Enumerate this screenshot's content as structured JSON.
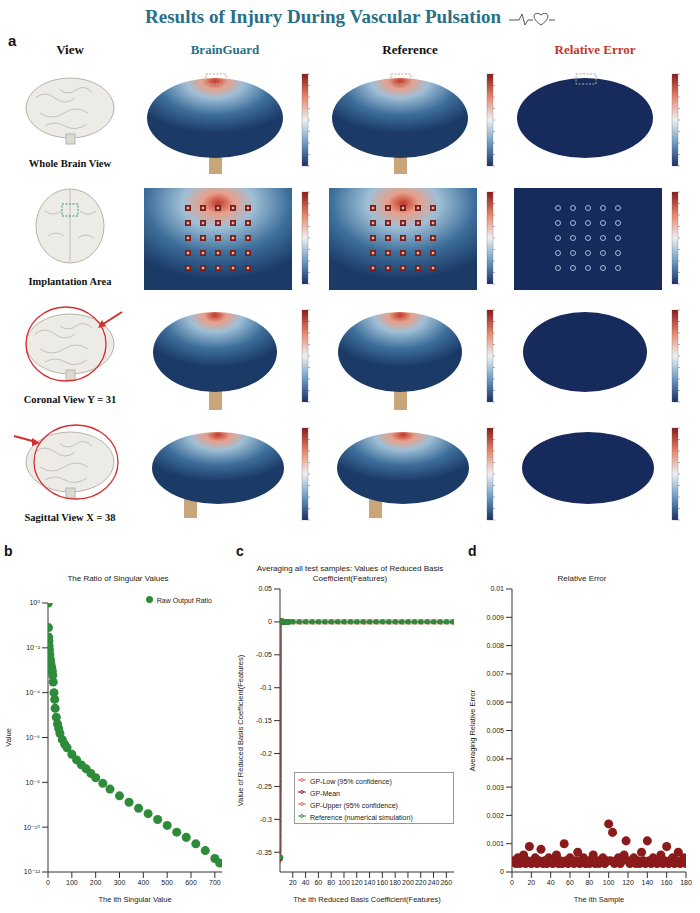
{
  "title": "Results of Injury During Vascular Pulsation",
  "panel_a": {
    "label": "a",
    "columns": [
      "View",
      "BrainGuard",
      "Reference",
      "Relative Error"
    ],
    "rows": [
      "Whole Brain View",
      "Implantation Area",
      "Coronal View Y = 31",
      "Sagittal View X = 38"
    ]
  },
  "chart_data": [
    {
      "panel": "b",
      "type": "scatter",
      "title": "The Ratio of Singular Values",
      "x_label": "The ith Singular Value",
      "y_label": "Value",
      "log": "y",
      "grid": false,
      "legend": "top right",
      "xlim": [
        0,
        730
      ],
      "xticks": [
        0,
        100,
        200,
        300,
        400,
        500,
        600,
        700
      ],
      "ylim": [
        1e-12,
        1
      ],
      "yticks": [
        {
          "value": 1,
          "label": "10⁰"
        },
        {
          "value": 0.01,
          "label": "10⁻²"
        },
        {
          "value": 0.0001,
          "label": "10⁻⁴"
        },
        {
          "value": 1e-06,
          "label": "10⁻⁶"
        },
        {
          "value": 1e-08,
          "label": "10⁻⁸"
        },
        {
          "value": 1e-10,
          "label": "10⁻¹⁰"
        },
        {
          "value": 1e-12,
          "label": "10⁻¹²"
        }
      ],
      "x": [
        1,
        2,
        3,
        4,
        5,
        6,
        8,
        10,
        12,
        14,
        16,
        18,
        20,
        22,
        25,
        28,
        30,
        35,
        40,
        45,
        50,
        60,
        70,
        80,
        100,
        120,
        140,
        160,
        180,
        200,
        230,
        260,
        300,
        340,
        380,
        420,
        460,
        500,
        540,
        580,
        620,
        660,
        700,
        720
      ],
      "series": [
        {
          "name": "Raw Output Ratio",
          "color": "#2e8b3a",
          "marker": "circle",
          "values": [
            1,
            0.08,
            0.03,
            0.02,
            0.012,
            0.008,
            0.005,
            0.003,
            0.002,
            0.0015,
            0.0012,
            0.0009,
            0.0006,
            0.0003,
            0.0001,
            5e-05,
            2e-05,
            8e-06,
            4e-06,
            2.5e-06,
            1.5e-06,
            8e-07,
            5e-07,
            3.5e-07,
            1.8e-07,
            1e-07,
            6e-08,
            4e-08,
            2.5e-08,
            1.6e-08,
            9e-09,
            5e-09,
            2.5e-09,
            1.3e-09,
            7e-10,
            4e-10,
            2.2e-10,
            1.2e-10,
            6e-11,
            3.5e-11,
            1.8e-11,
            9e-12,
            4e-12,
            2.5e-12
          ]
        }
      ]
    },
    {
      "panel": "c",
      "type": "line",
      "title": "Averaging all test samples: Values of Reduced Basis Coefficient(Features)",
      "x_label": "The ith Reduced Basis Coefficient(Features)",
      "y_label": "Value of Reduced Basis Coefficient(Features)",
      "grid": false,
      "legend": "lower left",
      "xlim": [
        0,
        272
      ],
      "xticks": [
        20,
        40,
        60,
        80,
        100,
        120,
        140,
        160,
        180,
        200,
        220,
        240,
        260
      ],
      "ylim": [
        -0.38,
        0.05
      ],
      "yticks": [
        0.05,
        0,
        -0.05,
        -0.1,
        -0.15,
        -0.2,
        -0.25,
        -0.3,
        -0.35
      ],
      "x": [
        1,
        2,
        3,
        4,
        5,
        6,
        7,
        8,
        9,
        10,
        11,
        12,
        13,
        15,
        20,
        30,
        40,
        50,
        60,
        70,
        80,
        90,
        100,
        110,
        120,
        130,
        140,
        150,
        160,
        170,
        180,
        190,
        200,
        210,
        220,
        230,
        240,
        250,
        260,
        270
      ],
      "series": [
        {
          "name": "GP-Mean",
          "color": "#8b1a1a",
          "marker": "circle",
          "line_style": "solid",
          "values": [
            -0.36,
            0.002,
            0.001,
            -0.001,
            0.0005,
            0,
            -0.0003,
            -0.0002,
            -0.0004,
            0,
            -0.0006,
            -0.0005,
            0,
            0.0002,
            0.0001,
            0,
            0.0001,
            0,
            -0.0001,
            0,
            0,
            0.0001,
            0,
            0,
            -0.0001,
            0,
            0,
            0,
            0.0001,
            0,
            0,
            -0.0001,
            0,
            0,
            0,
            0.0001,
            0,
            0,
            0,
            0
          ]
        },
        {
          "name": "Reference (numerical simulation)",
          "color": "#2e8b3a",
          "marker": "circle",
          "line_style": "dashed",
          "values": [
            -0.358,
            0.0018,
            0.0012,
            -0.0008,
            0.0004,
            0.0001,
            -0.0002,
            -0.0003,
            -0.0004,
            0.0001,
            -0.0005,
            -0.0006,
            0.0001,
            0.0002,
            0,
            0,
            0.0001,
            0,
            -0.0001,
            0,
            0,
            0.0001,
            0,
            0,
            -0.0001,
            0,
            0,
            0,
            0.0001,
            0,
            0,
            -0.0001,
            0,
            0,
            0,
            0.0001,
            0,
            0,
            0,
            0
          ]
        },
        {
          "name": "GP-Low (95% confidence)",
          "color": "#e06060",
          "marker": "none",
          "line_style": "solid",
          "values": [
            -0.366,
            -0.001,
            -0.002,
            -0.004,
            -0.0025,
            -0.003,
            -0.0033,
            -0.0032,
            -0.0034,
            -0.003,
            -0.0036,
            -0.0035,
            -0.003,
            -0.0028,
            -0.0029,
            -0.003,
            -0.0029,
            -0.003,
            -0.0031,
            -0.003,
            -0.003,
            -0.0029,
            -0.003,
            -0.003,
            -0.0031,
            -0.003,
            -0.003,
            -0.003,
            -0.0029,
            -0.003,
            -0.003,
            -0.0031,
            -0.003,
            -0.003,
            -0.003,
            -0.0029,
            -0.003,
            -0.003,
            -0.003,
            -0.003
          ]
        },
        {
          "name": "GP-Upper (95% confidence)",
          "color": "#e06060",
          "marker": "none",
          "line_style": "solid",
          "values": [
            -0.354,
            0.005,
            0.004,
            0.002,
            0.0035,
            0.003,
            0.0027,
            0.0028,
            0.0026,
            0.003,
            0.0024,
            0.0025,
            0.003,
            0.0032,
            0.0031,
            0.003,
            0.0031,
            0.003,
            0.0029,
            0.003,
            0.003,
            0.0031,
            0.003,
            0.003,
            0.0029,
            0.003,
            0.003,
            0.003,
            0.0031,
            0.003,
            0.003,
            0.0029,
            0.003,
            0.003,
            0.003,
            0.0031,
            0.003,
            0.003,
            0.003,
            0.003
          ]
        }
      ]
    },
    {
      "panel": "d",
      "type": "scatter",
      "title": "Relative Error",
      "x_label": "The ith Sample",
      "y_label": "Averaging Relative Error",
      "grid": false,
      "xlim": [
        0,
        180
      ],
      "xticks": [
        0,
        20,
        40,
        60,
        80,
        100,
        120,
        140,
        160,
        180
      ],
      "ylim": [
        0,
        0.01
      ],
      "yticks": [
        0,
        0.001,
        0.002,
        0.003,
        0.004,
        0.005,
        0.006,
        0.007,
        0.008,
        0.009,
        0.01
      ],
      "x": [
        2,
        4,
        6,
        8,
        10,
        12,
        14,
        16,
        18,
        20,
        22,
        24,
        26,
        28,
        30,
        32,
        34,
        36,
        38,
        40,
        42,
        44,
        46,
        48,
        50,
        52,
        54,
        56,
        58,
        60,
        62,
        64,
        66,
        68,
        70,
        72,
        74,
        76,
        78,
        80,
        82,
        84,
        86,
        88,
        90,
        92,
        94,
        96,
        98,
        100,
        102,
        104,
        106,
        108,
        110,
        112,
        114,
        116,
        118,
        120,
        122,
        124,
        126,
        128,
        130,
        132,
        134,
        136,
        138,
        140,
        142,
        144,
        146,
        148,
        150,
        152,
        154,
        156,
        158,
        160,
        162,
        164,
        166,
        168,
        170,
        172,
        174,
        176,
        178,
        180
      ],
      "series": [
        {
          "name": "Relative Error",
          "color": "#8b1a1a",
          "marker": "circle",
          "values": [
            0.0004,
            0.0003,
            0.0005,
            0.0003,
            0.0004,
            0.0006,
            0.0003,
            0.0004,
            0.0009,
            0.0003,
            0.0004,
            0.0005,
            0.0003,
            0.0004,
            0.0008,
            0.0003,
            0.0004,
            0.0003,
            0.0005,
            0.0004,
            0.0003,
            0.0004,
            0.0006,
            0.0003,
            0.0004,
            0.0003,
            0.001,
            0.0004,
            0.0003,
            0.0005,
            0.0004,
            0.0003,
            0.0004,
            0.0007,
            0.0003,
            0.0004,
            0.0005,
            0.0003,
            0.0004,
            0.0003,
            0.0004,
            0.0006,
            0.0003,
            0.0004,
            0.0003,
            0.0004,
            0.0005,
            0.0003,
            0.0004,
            0.0017,
            0.0004,
            0.0014,
            0.0003,
            0.0004,
            0.0005,
            0.0003,
            0.0004,
            0.0006,
            0.0011,
            0.0004,
            0.0003,
            0.0004,
            0.0005,
            0.0003,
            0.0004,
            0.0003,
            0.0007,
            0.0004,
            0.0003,
            0.0011,
            0.0004,
            0.0003,
            0.0005,
            0.0004,
            0.0003,
            0.0004,
            0.0006,
            0.0003,
            0.0004,
            0.0009,
            0.0003,
            0.0004,
            0.0005,
            0.0003,
            0.0004,
            0.0007,
            0.0003,
            0.0004,
            0.0005,
            0.0003
          ]
        }
      ]
    }
  ]
}
